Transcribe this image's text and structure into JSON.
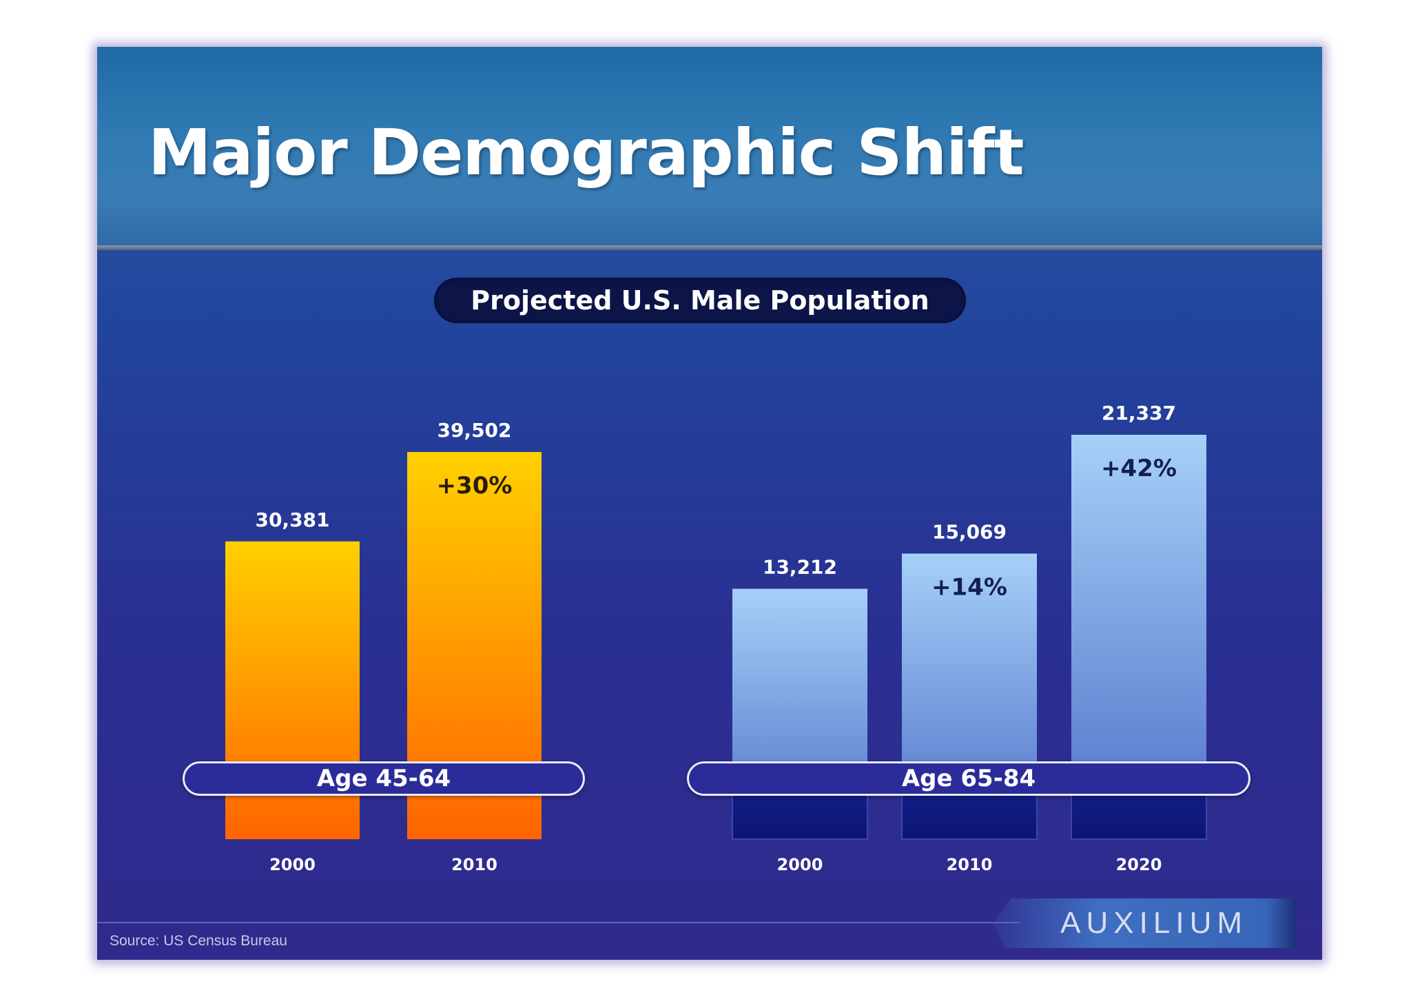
{
  "title": "Major Demographic Shift",
  "chart_data": {
    "type": "bar",
    "title": "Projected U.S. Male Population",
    "groups": [
      {
        "label": "Age 45-64",
        "categories": [
          "2000",
          "2010"
        ],
        "values": [
          30381,
          39502
        ],
        "value_labels": [
          "30,381",
          "39,502"
        ],
        "change_labels": [
          "",
          "+30%"
        ],
        "colors": [
          "#ffd000",
          "#ff6400"
        ]
      },
      {
        "label": "Age 65-84",
        "categories": [
          "2000",
          "2010",
          "2020"
        ],
        "values": [
          13212,
          15069,
          21337
        ],
        "value_labels": [
          "13,212",
          "15,069",
          "21,337"
        ],
        "change_labels": [
          "",
          "+14%",
          "+42%"
        ],
        "colors": [
          "#a6d0f8",
          "#5070c8"
        ]
      }
    ],
    "grid": false,
    "legend": "none"
  },
  "source": "Source: US Census Bureau",
  "logo": "AUXILIUM"
}
